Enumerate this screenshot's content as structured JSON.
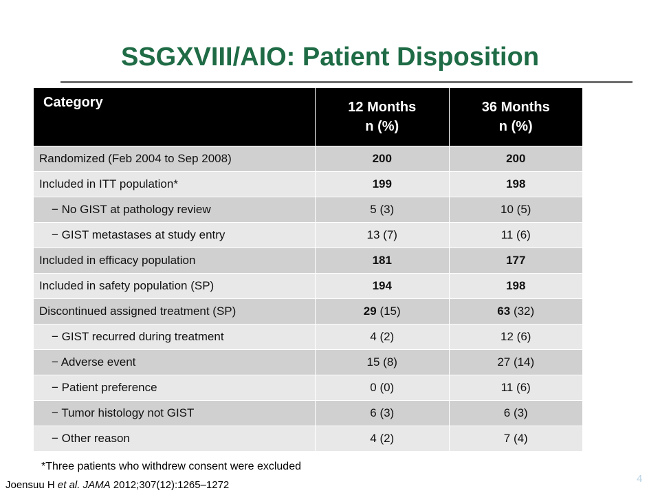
{
  "slide": {
    "title": "SSGXVIII/AIO: Patient Disposition",
    "footnote": "*Three patients who withdrew consent were excluded",
    "citation": {
      "authors": "Joensuu H ",
      "etal": "et al.",
      "journal": "JAMA",
      "ref": " 2012;307(12):1265–1272"
    },
    "page_number": "4"
  },
  "table": {
    "headers": {
      "category": "Category",
      "m12_line1": "12 Months",
      "m12_line2": "n (%)",
      "m36_line1": "36 Months",
      "m36_line2": "n (%)"
    },
    "rows": [
      {
        "label": "Randomized (Feb 2004 to Sep 2008)",
        "m12": "200",
        "m12_pct": "",
        "m36": "200",
        "m36_pct": ""
      },
      {
        "label": "Included in ITT population*",
        "m12": "199",
        "m12_pct": "",
        "m36": "198",
        "m36_pct": ""
      },
      {
        "label": "− No GIST at pathology review",
        "m12": "5 (3)",
        "m12_pct": "",
        "m36": "10 (5)",
        "m36_pct": ""
      },
      {
        "label": "− GIST metastases at study entry",
        "m12": "13 (7)",
        "m12_pct": "",
        "m36": "11 (6)",
        "m36_pct": ""
      },
      {
        "label": "Included in efficacy population",
        "m12": "181",
        "m12_pct": "",
        "m36": "177",
        "m36_pct": ""
      },
      {
        "label": "Included in safety population (SP)",
        "m12": "194",
        "m12_pct": "",
        "m36": "198",
        "m36_pct": ""
      },
      {
        "label": "Discontinued assigned treatment (SP)",
        "m12": "29",
        "m12_pct": " (15)",
        "m36": "63",
        "m36_pct": " (32)"
      },
      {
        "label": "− GIST recurred during treatment",
        "m12": "4 (2)",
        "m12_pct": "",
        "m36": "12 (6)",
        "m36_pct": ""
      },
      {
        "label": "− Adverse event",
        "m12": "15 (8)",
        "m12_pct": "",
        "m36": "27 (14)",
        "m36_pct": ""
      },
      {
        "label": "− Patient preference",
        "m12": "0 (0)",
        "m12_pct": "",
        "m36": "11 (6)",
        "m36_pct": ""
      },
      {
        "label": "− Tumor histology not GIST",
        "m12": "6 (3)",
        "m12_pct": "",
        "m36": "6 (3)",
        "m36_pct": ""
      },
      {
        "label": "− Other reason",
        "m12": "4 (2)",
        "m12_pct": "",
        "m36": "7 (4)",
        "m36_pct": ""
      }
    ]
  },
  "colors": {
    "title": "#1e6b45",
    "header_bg": "#000000",
    "row_dark": "#d0d0d0",
    "row_light": "#e8e8e8"
  }
}
